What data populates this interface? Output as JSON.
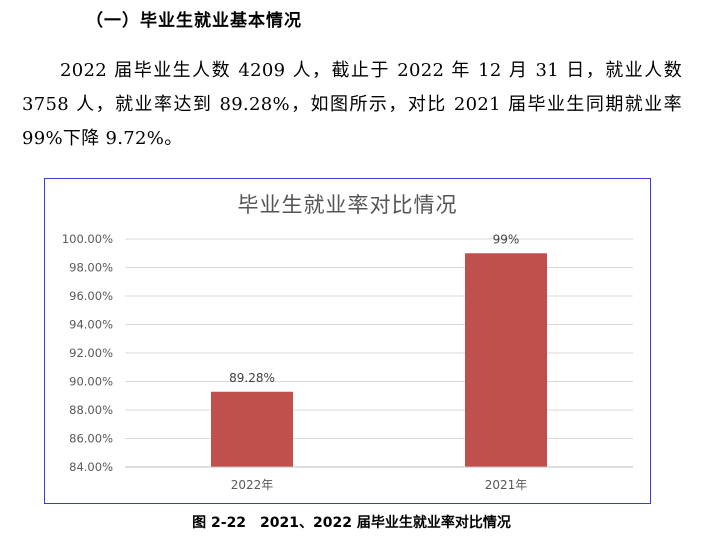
{
  "section_title": "（一）毕业生就业基本情况",
  "paragraph": "2022 届毕业生人数 4209 人，截止于 2022 年 12 月 31 日，就业人数 3758 人，就业率达到 89.28%，如图所示，对比 2021 届毕业生同期就业率 99%下降 9.72%。",
  "caption": "图 2-22　2021、2022 届毕业生就业率对比情况",
  "colors": {
    "bar": "#c0504d",
    "grid": "#d9d9d9",
    "axis_text": "#595959",
    "frame": "#3b3bd6"
  },
  "chart_data": {
    "type": "bar",
    "title": "毕业生就业率对比情况",
    "categories": [
      "2022年",
      "2021年"
    ],
    "values": [
      89.28,
      99
    ],
    "data_labels": [
      "89.28%",
      "99%"
    ],
    "ylim": [
      84,
      100
    ],
    "yticks": [
      "84.00%",
      "86.00%",
      "88.00%",
      "90.00%",
      "92.00%",
      "94.00%",
      "96.00%",
      "98.00%",
      "100.00%"
    ],
    "grid": true,
    "legend": "none"
  }
}
